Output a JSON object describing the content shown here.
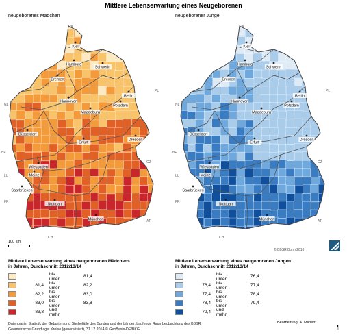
{
  "title": "Mittlere Lebenserwartung eines Neugeborenen",
  "maps": {
    "left": {
      "subtitle": "neugeborenes Mädchen",
      "palette": [
        "#fde9c2",
        "#f9c36a",
        "#f39a3a",
        "#e06026",
        "#c8262b"
      ],
      "cities": {
        "kiel": "Kiel",
        "hamburg": "Hamburg",
        "schwerin": "Schwerin",
        "bremen": "Bremen",
        "berlin": "Berlin",
        "hannover": "Hannover",
        "potsdam": "Potsdam",
        "magdeburg": "Magdeburg",
        "duesseldorf": "Düsseldorf",
        "erfurt": "Erfurt",
        "dresden": "Dresden",
        "wiesbaden": "Wiesbaden",
        "mainz": "Mainz",
        "saarbruecken": "Saarbrücken",
        "stuttgart": "Stuttgart",
        "muenchen": "München"
      },
      "countries": {
        "dk": "DK",
        "nl": "NL",
        "pl": "PL",
        "be": "BE",
        "lu": "LU",
        "cz": "CZ",
        "fr": "FR",
        "at": "AT",
        "ch": "CH"
      }
    },
    "right": {
      "subtitle": "neugeborener Junge",
      "palette": [
        "#deebf7",
        "#a9cceb",
        "#6fa8dc",
        "#3a7cc2",
        "#0f4f9c"
      ],
      "cities": {
        "kiel": "Kiel",
        "hamburg": "Hamburg",
        "schwerin": "Schwerin",
        "bremen": "Bremen",
        "berlin": "Berlin",
        "hannover": "Hannover",
        "potsdam": "Potsdam",
        "magdeburg": "Magdeburg",
        "duesseldorf": "Düsseldorf",
        "erfurt": "Erfurt",
        "dresden": "Dresden",
        "wiesbaden": "Wiesbaden",
        "mainz": "Mainz",
        "saarbruecken": "Saarbrücken",
        "stuttgart": "Stuttgart",
        "muenchen": "München"
      },
      "countries": {
        "dk": "DK",
        "nl": "NL",
        "pl": "PL",
        "be": "BE",
        "lu": "LU",
        "cz": "CZ",
        "fr": "FR",
        "at": "AT",
        "ch": "CH"
      }
    }
  },
  "scale": "100 km",
  "copyright": "© BBSR Bonn 2016",
  "legend_left": {
    "title1": "Mittlere Lebenserwartung eines neugeborenen Mädchens",
    "title2": "in Jahren, Durchschnitt 2012/13/14",
    "rows": [
      {
        "from": "",
        "op": "bis unter",
        "to": "81,4",
        "color": "#fde9c2"
      },
      {
        "from": "81,4",
        "op": "bis unter",
        "to": "82,2",
        "color": "#f9c36a"
      },
      {
        "from": "82,2",
        "op": "bis unter",
        "to": "83,0",
        "color": "#f39a3a"
      },
      {
        "from": "83,0",
        "op": "bis unter",
        "to": "83,8",
        "color": "#e06026"
      },
      {
        "from": "83,8",
        "op": "und mehr",
        "to": "",
        "color": "#c8262b"
      }
    ]
  },
  "legend_right": {
    "title1": "Mittlere Lebenserwartung eines neugeborenen Jungen",
    "title2": "in Jahren, Durchschnitt 2012/13/14",
    "rows": [
      {
        "from": "",
        "op": "bis unter",
        "to": "76,4",
        "color": "#deebf7"
      },
      {
        "from": "76,4",
        "op": "bis unter",
        "to": "77,4",
        "color": "#a9cceb"
      },
      {
        "from": "77,4",
        "op": "bis unter",
        "to": "78,4",
        "color": "#6fa8dc"
      },
      {
        "from": "78,4",
        "op": "bis unter",
        "to": "79,4",
        "color": "#3a7cc2"
      },
      {
        "from": "79,4",
        "op": "und mehr",
        "to": "",
        "color": "#0f4f9c"
      }
    ]
  },
  "footer": {
    "line1": "Datenbasis: Statistik der Geburten und Sterbefälle des Bundes und der Länder, Laufende Raumbeobachtung des BBSR",
    "line2": "Geometrische Grundlage: Kreise (generalisiert), 31.12.2014 © GeoBasis-DE/BKG",
    "bearbeitung": "Bearbeitung: A. Milbert",
    "mark": "¶"
  }
}
